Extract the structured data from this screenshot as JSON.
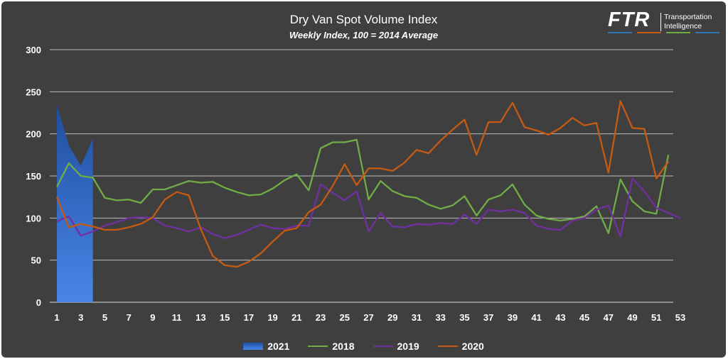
{
  "header": {
    "title": "Dry Van Spot Volume Index",
    "subtitle": "Weekly Index, 100 = 2014 Average"
  },
  "logo": {
    "brand": "FTR",
    "tagline_1": "Transportation",
    "tagline_2": "Intelligence",
    "bar_colors": [
      "#2e75b6",
      "#c55a11",
      "#70ad47",
      "#2e75b6"
    ]
  },
  "chart_data": {
    "type": "line",
    "title": "Dry Van Spot Volume Index",
    "subtitle": "Weekly Index, 100 = 2014 Average",
    "xlabel": "",
    "ylabel": "",
    "ylim": [
      0,
      300
    ],
    "y_ticks": [
      0,
      50,
      100,
      150,
      200,
      250,
      300
    ],
    "xlim": [
      1,
      53
    ],
    "x_tick_labels": [
      1,
      3,
      5,
      7,
      9,
      11,
      13,
      15,
      17,
      19,
      21,
      23,
      25,
      27,
      29,
      31,
      33,
      35,
      37,
      39,
      41,
      43,
      45,
      47,
      49,
      51,
      53
    ],
    "grid": true,
    "legend_position": "bottom",
    "series": [
      {
        "name": "2021",
        "render": "area",
        "color": "#3a70d0",
        "x": [
          1,
          2,
          3,
          4
        ],
        "values": [
          234,
          186,
          162,
          194
        ]
      },
      {
        "name": "2018",
        "render": "line",
        "color": "#70ad47",
        "x": [
          1,
          2,
          3,
          4,
          5,
          6,
          7,
          8,
          9,
          10,
          11,
          12,
          13,
          14,
          15,
          16,
          17,
          18,
          19,
          20,
          21,
          22,
          23,
          24,
          25,
          26,
          27,
          28,
          29,
          30,
          31,
          32,
          33,
          34,
          35,
          36,
          37,
          38,
          39,
          40,
          41,
          42,
          43,
          44,
          45,
          46,
          47,
          48,
          49,
          50,
          51,
          52
        ],
        "values": [
          137,
          165,
          150,
          148,
          124,
          121,
          122,
          118,
          134,
          134,
          139,
          144,
          142,
          143,
          136,
          131,
          127,
          128,
          135,
          145,
          152,
          133,
          183,
          190,
          190,
          193,
          122,
          144,
          132,
          126,
          124,
          116,
          111,
          115,
          126,
          103,
          122,
          127,
          140,
          116,
          103,
          99,
          97,
          99,
          102,
          114,
          82,
          146,
          120,
          108,
          105,
          175
        ]
      },
      {
        "name": "2019",
        "render": "line",
        "color": "#7030a0",
        "x": [
          1,
          2,
          3,
          4,
          5,
          6,
          7,
          8,
          9,
          10,
          11,
          12,
          13,
          14,
          15,
          16,
          17,
          18,
          19,
          20,
          21,
          22,
          23,
          24,
          25,
          26,
          27,
          28,
          29,
          30,
          31,
          32,
          33,
          34,
          35,
          36,
          37,
          38,
          39,
          40,
          41,
          42,
          43,
          44,
          45,
          46,
          47,
          48,
          49,
          50,
          51,
          52,
          53
        ],
        "values": [
          96,
          102,
          79,
          84,
          91,
          95,
          100,
          101,
          100,
          91,
          88,
          84,
          89,
          81,
          76,
          80,
          86,
          92,
          88,
          87,
          91,
          91,
          140,
          130,
          121,
          132,
          84,
          106,
          90,
          89,
          93,
          92,
          94,
          93,
          104,
          93,
          110,
          108,
          110,
          106,
          91,
          87,
          86,
          97,
          100,
          110,
          115,
          78,
          147,
          132,
          112,
          106,
          100
        ]
      },
      {
        "name": "2020",
        "render": "line",
        "color": "#c55a11",
        "x": [
          1,
          2,
          3,
          4,
          5,
          6,
          7,
          8,
          9,
          10,
          11,
          12,
          13,
          14,
          15,
          16,
          17,
          18,
          19,
          20,
          21,
          22,
          23,
          24,
          25,
          26,
          27,
          28,
          29,
          30,
          31,
          32,
          33,
          34,
          35,
          36,
          37,
          38,
          39,
          40,
          41,
          42,
          43,
          44,
          45,
          46,
          47,
          48,
          49,
          50,
          51,
          52
        ],
        "values": [
          125,
          89,
          93,
          90,
          86,
          86,
          89,
          93,
          101,
          122,
          131,
          127,
          87,
          55,
          44,
          42,
          48,
          58,
          72,
          85,
          88,
          107,
          116,
          138,
          164,
          139,
          159,
          159,
          156,
          166,
          181,
          177,
          192,
          205,
          217,
          175,
          214,
          214,
          237,
          208,
          204,
          199,
          207,
          219,
          210,
          213,
          154,
          239,
          207,
          206,
          147,
          167
        ]
      }
    ]
  }
}
